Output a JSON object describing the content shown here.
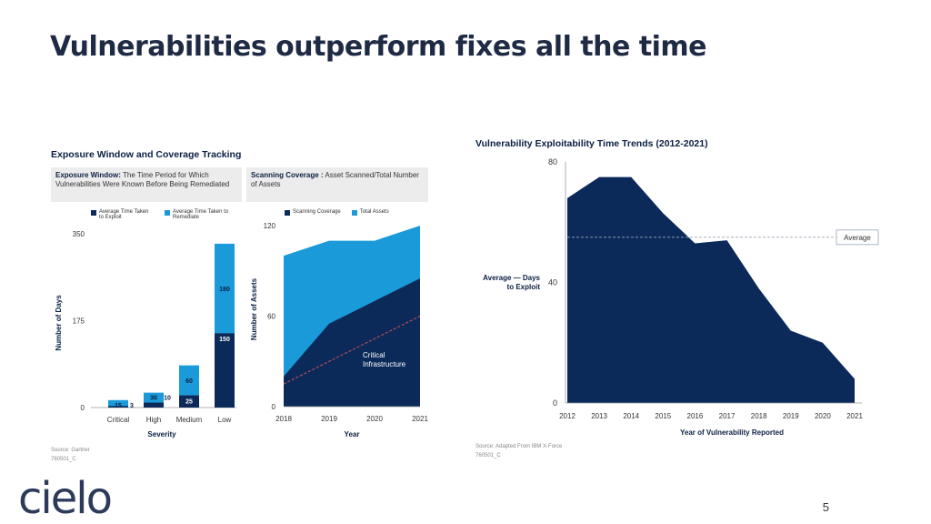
{
  "slide": {
    "title": "Vulnerabilities outperform fixes all the time",
    "page_number": "5",
    "logo_text": "cielo"
  },
  "colors": {
    "navy": "#0b2a5a",
    "blue": "#1a9ad9",
    "title": "#1f2a44",
    "dashed_red": "#d9534f"
  },
  "left_panel": {
    "title": "Exposure Window and Coverage Tracking",
    "exposure_def_bold": "Exposure Window:",
    "exposure_def_text": " The Time Period for Which Vulnerabilities Were Known Before Being Remediated",
    "coverage_def_bold": "Scanning Coverage :",
    "coverage_def_text": " Asset Scanned/Total Number of Assets",
    "legend_exploit": "Average Time Taken to Exploit",
    "legend_remediate": "Average Time Taken to Remediate",
    "legend_scanning": "Scanning Coverage",
    "legend_total": "Total Assets",
    "source_line1": "Source: Gartner",
    "source_line2": "760501_C"
  },
  "right_panel": {
    "title": "Vulnerability Exploitability Time Trends (2012-2021)",
    "avg_label_line1": "Average — Days",
    "avg_label_line2": "to Exploit",
    "average_box": "Average",
    "source_line1": "Source: Adapted From IBM X-Force",
    "source_line2": "760501_C"
  },
  "chart_data": [
    {
      "type": "bar",
      "stacked": true,
      "categories": [
        "Critical",
        "High",
        "Medium",
        "Low"
      ],
      "series": [
        {
          "name": "Average Time Taken to Exploit",
          "values": [
            3,
            10,
            25,
            150
          ]
        },
        {
          "name": "Average Time Taken to Remediate",
          "values": [
            15,
            30,
            60,
            180
          ]
        }
      ],
      "xlabel": "Severity",
      "ylabel": "Number of Days",
      "yticks": [
        "0",
        "175",
        "350"
      ],
      "ylim": [
        0,
        350
      ]
    },
    {
      "type": "area",
      "x": [
        "2018",
        "2019",
        "2020",
        "2021"
      ],
      "series": [
        {
          "name": "Total Assets",
          "values": [
            100,
            110,
            110,
            120
          ]
        },
        {
          "name": "Scanning Coverage",
          "values": [
            20,
            55,
            70,
            85
          ]
        },
        {
          "name": "Critical Infrastructure",
          "values": [
            15,
            30,
            45,
            60
          ],
          "style": "dashed"
        }
      ],
      "annotation": "Critical Infrastructure",
      "xlabel": "Year",
      "ylabel": "Number of Assets",
      "yticks": [
        "0",
        "60",
        "120"
      ],
      "ylim": [
        0,
        120
      ]
    },
    {
      "type": "area",
      "title": "Vulnerability Exploitability Time Trends (2012-2021)",
      "x": [
        "2012",
        "2013",
        "2014",
        "2015",
        "2016",
        "2017",
        "2018",
        "2019",
        "2020",
        "2021"
      ],
      "series": [
        {
          "name": "Days to Exploit",
          "values": [
            68,
            75,
            75,
            63,
            53,
            54,
            38,
            24,
            20,
            8
          ]
        }
      ],
      "average": 55,
      "xlabel": "Year of Vulnerability Reported",
      "ylabel": "Average — Days to Exploit",
      "yticks": [
        "0",
        "40",
        "80"
      ],
      "ylim": [
        0,
        80
      ]
    }
  ]
}
